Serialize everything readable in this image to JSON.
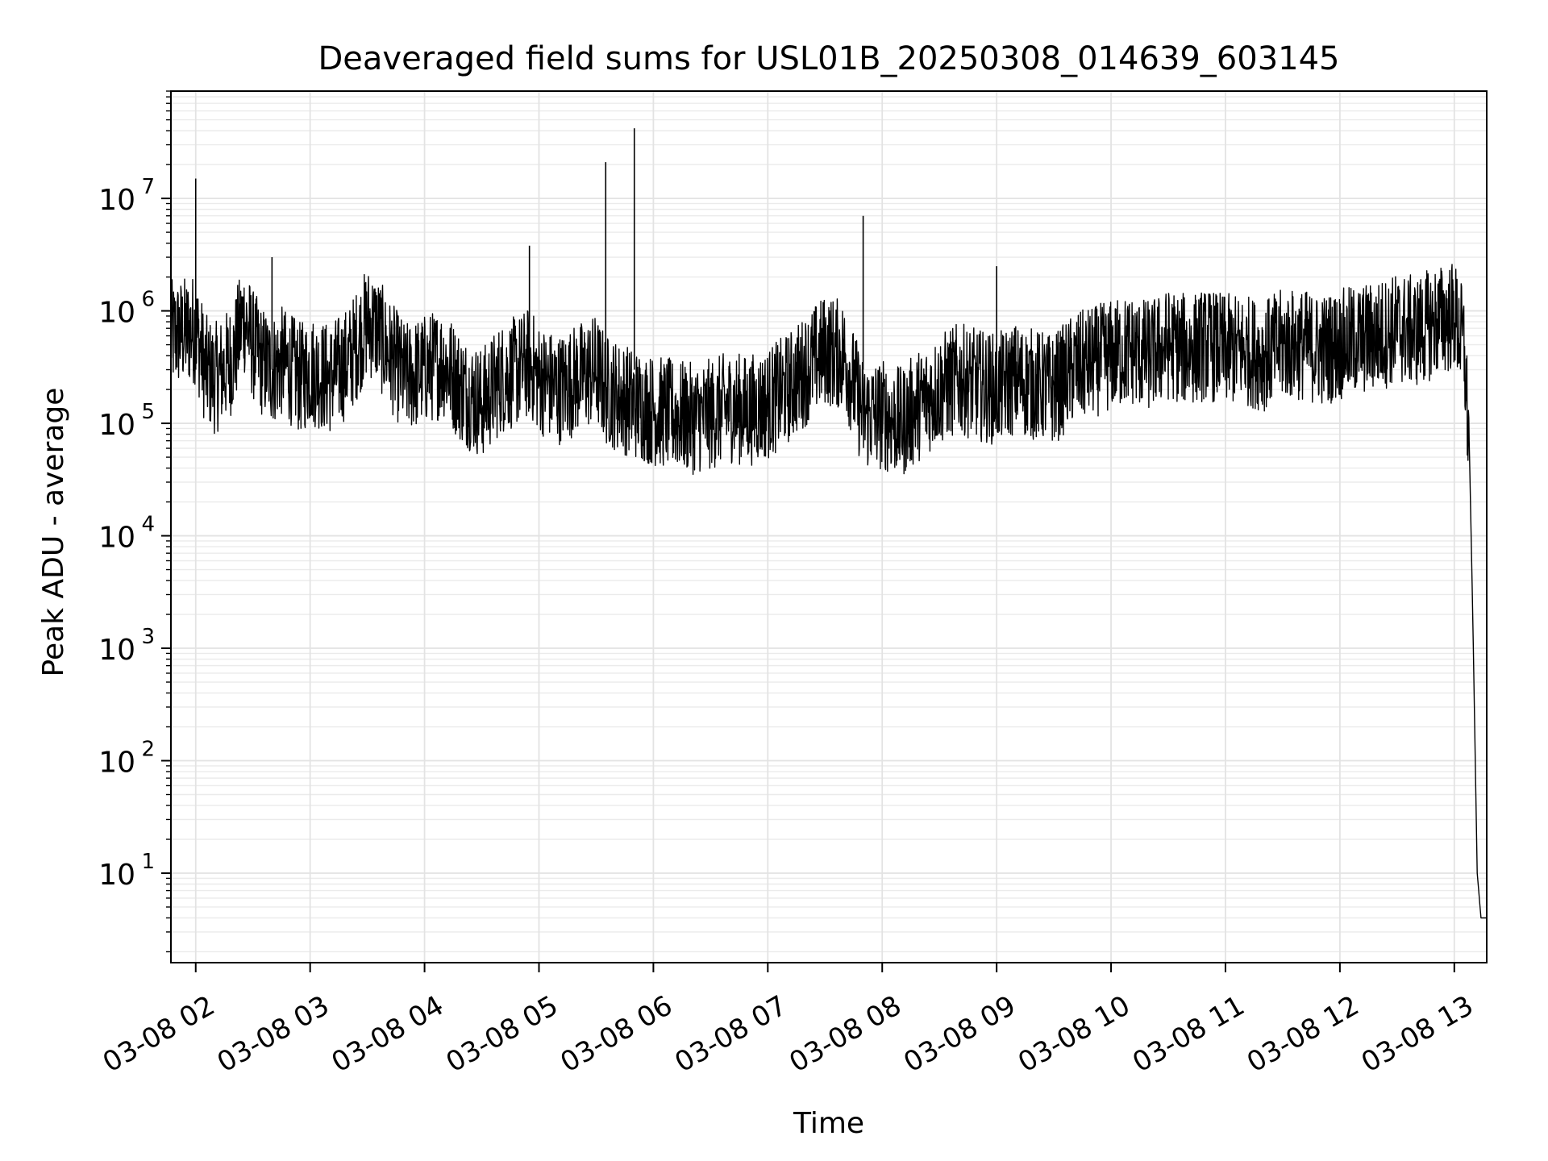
{
  "chart_data": {
    "type": "line",
    "title": "Deaveraged field sums for USL01B_20250308_014639_603145",
    "xlabel": "Time",
    "ylabel": "Peak ADU - average",
    "y_scale": "log",
    "ylim": [
      1.6,
      90000000.0
    ],
    "xlim": [
      "03-08 01:47",
      "03-08 13:17"
    ],
    "grid": true,
    "line_color": "#000000",
    "x_ticks": [
      {
        "value": "03-08 02:00",
        "label": "03-08 02"
      },
      {
        "value": "03-08 03:00",
        "label": "03-08 03"
      },
      {
        "value": "03-08 04:00",
        "label": "03-08 04"
      },
      {
        "value": "03-08 05:00",
        "label": "03-08 05"
      },
      {
        "value": "03-08 06:00",
        "label": "03-08 06"
      },
      {
        "value": "03-08 07:00",
        "label": "03-08 07"
      },
      {
        "value": "03-08 08:00",
        "label": "03-08 08"
      },
      {
        "value": "03-08 09:00",
        "label": "03-08 09"
      },
      {
        "value": "03-08 10:00",
        "label": "03-08 10"
      },
      {
        "value": "03-08 11:00",
        "label": "03-08 11"
      },
      {
        "value": "03-08 12:00",
        "label": "03-08 12"
      },
      {
        "value": "03-08 13:00",
        "label": "03-08 13"
      }
    ],
    "y_ticks": [
      {
        "value": 10,
        "base": "10",
        "exp": "1"
      },
      {
        "value": 100,
        "base": "10",
        "exp": "2"
      },
      {
        "value": 1000,
        "base": "10",
        "exp": "3"
      },
      {
        "value": 10000,
        "base": "10",
        "exp": "4"
      },
      {
        "value": 100000,
        "base": "10",
        "exp": "5"
      },
      {
        "value": 1000000,
        "base": "10",
        "exp": "6"
      },
      {
        "value": 10000000,
        "base": "10",
        "exp": "7"
      }
    ],
    "series": [
      {
        "x": [
          "03-08 01:47",
          "03-08 01:55",
          "03-08 02:00",
          "03-08 02:05",
          "03-08 02:10",
          "03-08 02:15",
          "03-08 02:20",
          "03-08 02:25",
          "03-08 02:30",
          "03-08 02:35",
          "03-08 02:40",
          "03-08 02:45",
          "03-08 02:50",
          "03-08 02:55",
          "03-08 03:00",
          "03-08 03:10",
          "03-08 03:20",
          "03-08 03:30",
          "03-08 03:35",
          "03-08 03:40",
          "03-08 03:50",
          "03-08 04:00",
          "03-08 04:10",
          "03-08 04:20",
          "03-08 04:30",
          "03-08 04:40",
          "03-08 04:50",
          "03-08 04:55",
          "03-08 05:00",
          "03-08 05:10",
          "03-08 05:20",
          "03-08 05:30",
          "03-08 05:35",
          "03-08 05:40",
          "03-08 05:50",
          "03-08 06:00",
          "03-08 06:10",
          "03-08 06:20",
          "03-08 06:30",
          "03-08 06:40",
          "03-08 06:50",
          "03-08 07:00",
          "03-08 07:10",
          "03-08 07:20",
          "03-08 07:30",
          "03-08 07:40",
          "03-08 07:50",
          "03-08 08:00",
          "03-08 08:10",
          "03-08 08:20",
          "03-08 08:30",
          "03-08 08:40",
          "03-08 08:50",
          "03-08 09:00",
          "03-08 09:10",
          "03-08 09:20",
          "03-08 09:30",
          "03-08 09:40",
          "03-08 09:50",
          "03-08 10:00",
          "03-08 10:10",
          "03-08 10:20",
          "03-08 10:30",
          "03-08 10:40",
          "03-08 10:50",
          "03-08 11:00",
          "03-08 11:10",
          "03-08 11:20",
          "03-08 11:30",
          "03-08 11:40",
          "03-08 11:50",
          "03-08 12:00",
          "03-08 12:10",
          "03-08 12:20",
          "03-08 12:30",
          "03-08 12:40",
          "03-08 12:50",
          "03-08 13:00",
          "03-08 13:05",
          "03-08 13:08",
          "03-08 13:10",
          "03-08 13:12",
          "03-08 13:14",
          "03-08 13:16",
          "03-08 13:17"
        ],
        "values": [
          600000,
          650000,
          700000,
          300000,
          250000,
          300000,
          400000,
          900000,
          500000,
          350000,
          300000,
          350000,
          300000,
          250000,
          300000,
          250000,
          350000,
          800000,
          700000,
          450000,
          250000,
          300000,
          350000,
          200000,
          150000,
          250000,
          300000,
          350000,
          250000,
          200000,
          250000,
          300000,
          200000,
          180000,
          150000,
          130000,
          120000,
          110000,
          120000,
          140000,
          130000,
          150000,
          200000,
          300000,
          450000,
          400000,
          120000,
          120000,
          100000,
          150000,
          200000,
          250000,
          220000,
          200000,
          250000,
          220000,
          200000,
          300000,
          350000,
          400000,
          450000,
          400000,
          500000,
          450000,
          500000,
          450000,
          450000,
          400000,
          500000,
          500000,
          450000,
          500000,
          550000,
          600000,
          700000,
          650000,
          800000,
          900000,
          500000,
          50000,
          1000,
          10,
          4,
          4,
          4
        ],
        "spikes": [
          {
            "x": "03-08 02:00",
            "y": 15000000
          },
          {
            "x": "03-08 02:40",
            "y": 3000000
          },
          {
            "x": "03-08 04:55",
            "y": 3800000
          },
          {
            "x": "03-08 05:35",
            "y": 21000000
          },
          {
            "x": "03-08 05:50",
            "y": 42000000
          },
          {
            "x": "03-08 07:50",
            "y": 7000000
          },
          {
            "x": "03-08 09:00",
            "y": 2500000
          }
        ]
      }
    ]
  }
}
